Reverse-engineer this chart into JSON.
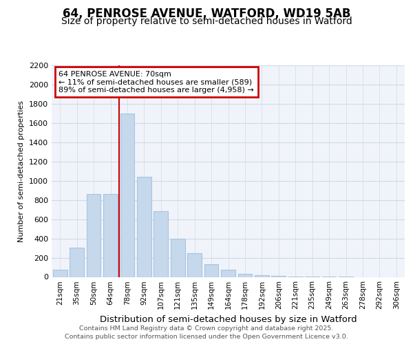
{
  "title": "64, PENROSE AVENUE, WATFORD, WD19 5AB",
  "subtitle": "Size of property relative to semi-detached houses in Watford",
  "xlabel": "Distribution of semi-detached houses by size in Watford",
  "ylabel": "Number of semi-detached properties",
  "annotation_title": "64 PENROSE AVENUE: 70sqm",
  "annotation_line1": "← 11% of semi-detached houses are smaller (589)",
  "annotation_line2": "89% of semi-detached houses are larger (4,958) →",
  "footer1": "Contains HM Land Registry data © Crown copyright and database right 2025.",
  "footer2": "Contains public sector information licensed under the Open Government Licence v3.0.",
  "categories": [
    "21sqm",
    "35sqm",
    "50sqm",
    "64sqm",
    "78sqm",
    "92sqm",
    "107sqm",
    "121sqm",
    "135sqm",
    "149sqm",
    "164sqm",
    "178sqm",
    "192sqm",
    "206sqm",
    "221sqm",
    "235sqm",
    "249sqm",
    "263sqm",
    "278sqm",
    "292sqm",
    "306sqm"
  ],
  "values": [
    75,
    305,
    860,
    860,
    1700,
    1040,
    680,
    400,
    245,
    135,
    75,
    30,
    20,
    10,
    5,
    2,
    2,
    2,
    0,
    0,
    0
  ],
  "vline_index": 3,
  "bar_color": "#c5d8ec",
  "bar_edge_color": "#a8c4e0",
  "vline_color": "#cc0000",
  "annotation_box_edgecolor": "#cc0000",
  "ylim_max": 2200,
  "yticks": [
    0,
    200,
    400,
    600,
    800,
    1000,
    1200,
    1400,
    1600,
    1800,
    2000,
    2200
  ],
  "grid_color": "#d0d8e8",
  "bg_color": "#f0f4fa",
  "title_fontsize": 12,
  "subtitle_fontsize": 10,
  "footer_fontsize": 6.8
}
